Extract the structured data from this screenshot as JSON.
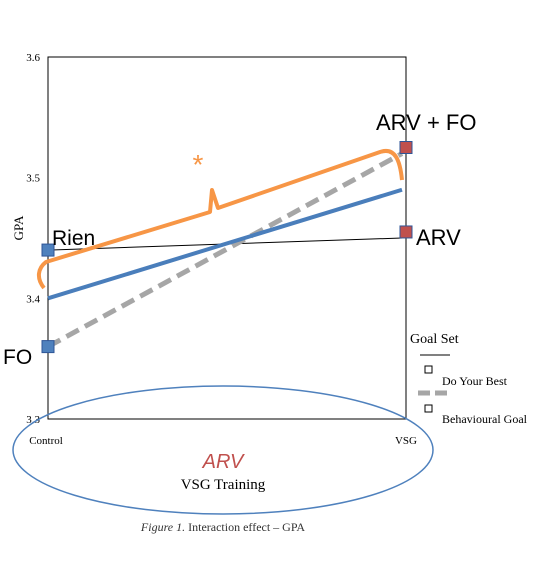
{
  "chart_data": {
    "type": "line",
    "ylabel": "GPA",
    "xlabel": "VSG Training",
    "caption_prefix": "Figure 1.",
    "caption_text": " Interaction effect – GPA",
    "categories": [
      "Control",
      "VSG"
    ],
    "ylim": [
      3.3,
      3.6
    ],
    "yticks": [
      "3.3",
      "3.4",
      "3.5",
      "3.6"
    ],
    "series": [
      {
        "name": "Do Your Best",
        "values": [
          3.44,
          3.45
        ],
        "color": "#000000",
        "style": "solid-thin"
      },
      {
        "name": "Behavioural Goal",
        "values": [
          3.36,
          3.52
        ],
        "color": "#a6a6a6",
        "style": "dashed"
      },
      {
        "values": [
          3.4,
          3.49
        ],
        "color": "#4a7ebb",
        "style": "solid-thick"
      }
    ],
    "legend": {
      "title": "Goal Set",
      "placement": "right",
      "entries": [
        "Do Your Best",
        "Behavioural Goal"
      ]
    }
  },
  "annotations": {
    "markers": [
      {
        "label": "Rien",
        "x": "Control",
        "y": 3.44,
        "color": "#4f81bd"
      },
      {
        "label": "FO",
        "x": "Control",
        "y": 3.36,
        "color": "#4f81bd"
      },
      {
        "label": "ARV + FO",
        "x": "VSG",
        "y": 3.525,
        "color": "#c0504d"
      },
      {
        "label": "ARV",
        "x": "VSG",
        "y": 3.455,
        "color": "#c0504d"
      }
    ],
    "brace_color": "#f79646",
    "asterisk": "*",
    "axis_overlay_label": "ARV",
    "overlay_label_color": "#c0504d",
    "ellipse_color": "#4f81bd"
  }
}
